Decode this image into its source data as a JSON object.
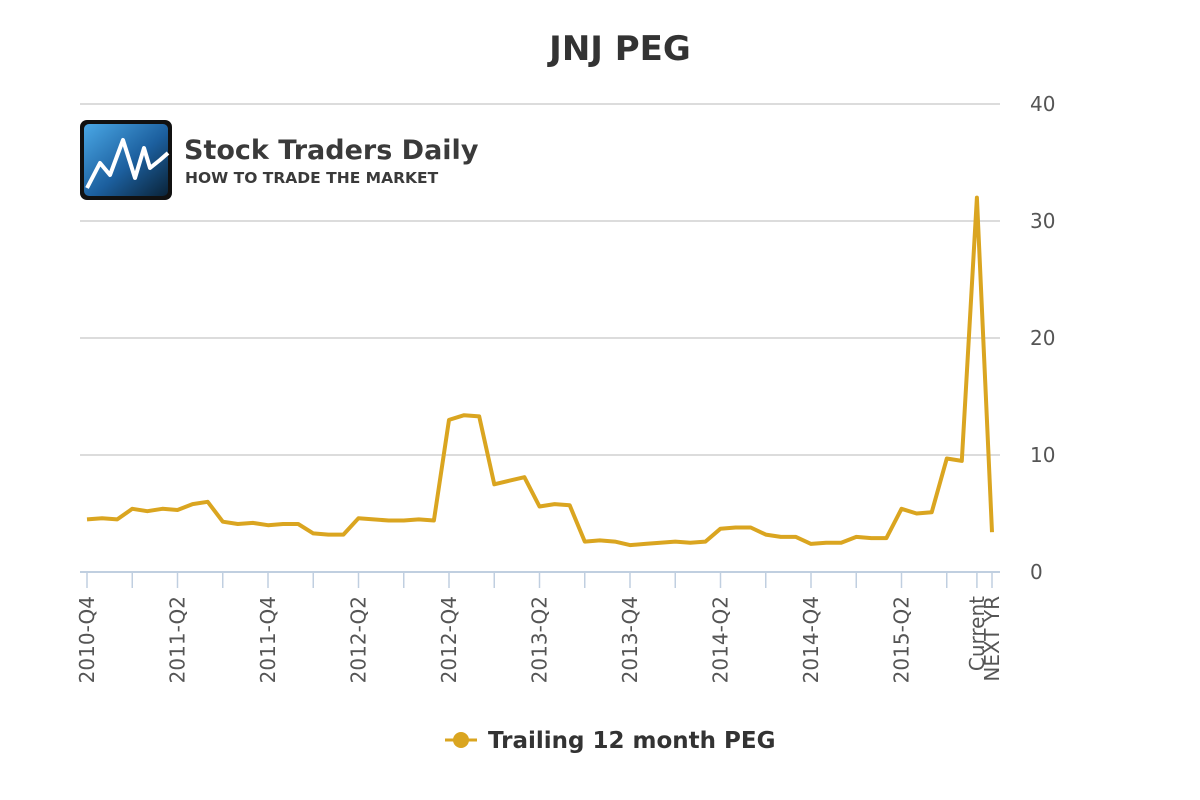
{
  "logo": {
    "brand": "Stock Traders Daily",
    "tagline": "HOW TO TRADE THE MARKET"
  },
  "chart_data": {
    "type": "line",
    "title": "JNJ PEG",
    "xlabel": "",
    "ylabel": "",
    "ylim": [
      0,
      40
    ],
    "y_ticks": [
      0,
      10,
      20,
      30,
      40
    ],
    "y_axis_side": "right",
    "grid": true,
    "legend_position": "bottom-center",
    "x_tick_labels": [
      "2010-Q4",
      "2011-Q2",
      "2011-Q4",
      "2012-Q2",
      "2012-Q4",
      "2013-Q2",
      "2013-Q4",
      "2014-Q2",
      "2014-Q4",
      "2015-Q2",
      "Current",
      "NEXT YR"
    ],
    "series": [
      {
        "name": "Trailing 12 month PEG",
        "color": "#DAA520",
        "values": [
          4.5,
          4.6,
          4.5,
          5.4,
          5.2,
          5.4,
          5.3,
          5.8,
          6.0,
          4.3,
          4.1,
          4.2,
          4.0,
          4.1,
          4.1,
          3.3,
          3.2,
          3.2,
          4.6,
          4.5,
          4.4,
          4.4,
          4.5,
          4.4,
          13.0,
          13.4,
          13.3,
          7.5,
          7.8,
          8.1,
          5.6,
          5.8,
          5.7,
          2.6,
          2.7,
          2.6,
          2.3,
          2.4,
          2.5,
          2.6,
          2.5,
          2.6,
          3.7,
          3.8,
          3.8,
          3.2,
          3.0,
          3.0,
          2.4,
          2.5,
          2.5,
          3.0,
          2.9,
          2.9,
          5.4,
          5.0,
          5.1,
          9.7,
          9.5,
          32.0,
          3.4
        ]
      }
    ]
  }
}
